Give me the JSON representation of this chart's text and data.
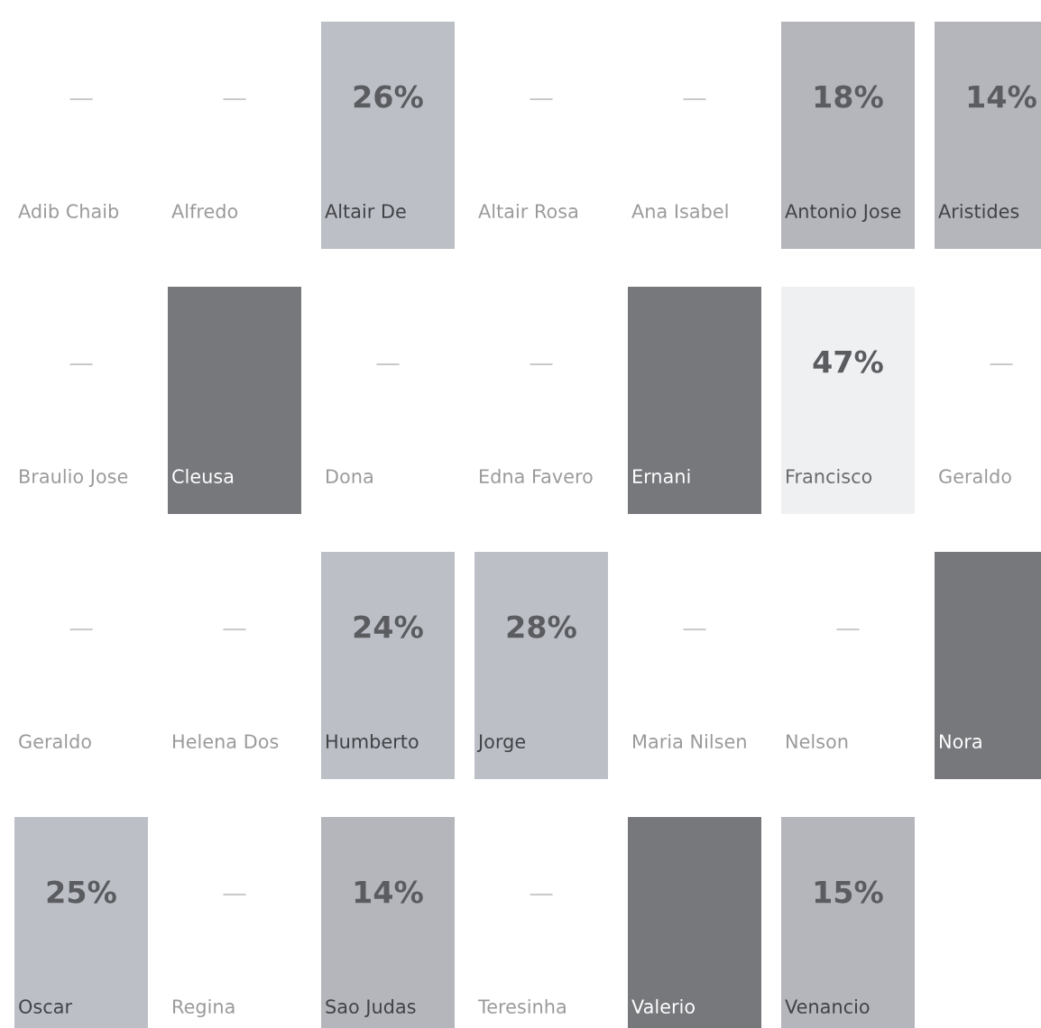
{
  "chart_data": {
    "type": "other",
    "categories": [
      "Adib Chaib",
      "Alfredo",
      "Altair De",
      "Altair Rosa",
      "Ana Isabel",
      "Antonio Jose",
      "Aristides",
      "Braulio Jose",
      "Cleusa",
      "Dona",
      "Edna Favero",
      "Ernani",
      "Francisco",
      "Geraldo",
      "Geraldo",
      "Helena Dos",
      "Humberto",
      "Jorge",
      "Maria Nilsen",
      "Nelson",
      "Nora",
      "Oscar",
      "Regina",
      "Sao Judas",
      "Teresinha",
      "Valerio",
      "Venancio"
    ],
    "values": [
      null,
      null,
      26,
      null,
      null,
      18,
      14,
      null,
      null,
      null,
      null,
      null,
      47,
      null,
      null,
      null,
      24,
      28,
      null,
      null,
      null,
      25,
      null,
      14,
      null,
      null,
      15
    ],
    "value_labels": [
      "—",
      "—",
      "26%",
      "—",
      "—",
      "18%",
      "14%",
      "—",
      null,
      "—",
      "—",
      null,
      "47%",
      "—",
      "—",
      "—",
      "24%",
      "28%",
      "—",
      "—",
      null,
      "25%",
      "—",
      "14%",
      "—",
      null,
      "15%"
    ],
    "colors": [
      null,
      null,
      "#bcbfc6",
      null,
      null,
      "#b4b6bc",
      "#b4b6bc",
      null,
      "#77787c",
      null,
      null,
      "#77787c",
      "#eef0f2",
      null,
      null,
      null,
      "#bcbfc6",
      "#bcbfc6",
      null,
      null,
      "#77787c",
      "#bcbfc6",
      null,
      "#b4b6bc",
      null,
      "#77787c",
      "#b4b6bc"
    ]
  }
}
